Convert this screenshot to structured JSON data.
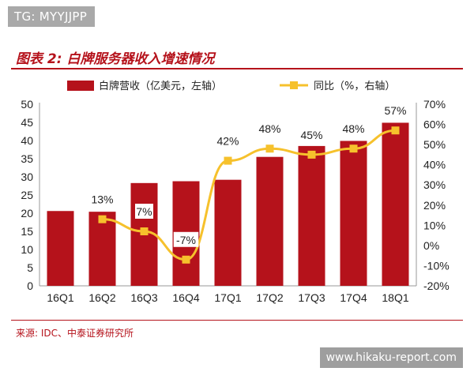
{
  "watermark_top": "TG: MYYJJPP",
  "figure_title": "图表 2:  白牌服务器收入增速情况",
  "source": "来源: IDC、中泰证券研究所",
  "watermark_bottom": "www.hikaku-report.com",
  "colors": {
    "bar": "#b5121b",
    "line": "#f6c12c",
    "accent": "#b5121b"
  },
  "chart_data": {
    "type": "bar",
    "categories": [
      "16Q1",
      "16Q2",
      "16Q3",
      "16Q4",
      "17Q1",
      "17Q2",
      "17Q3",
      "17Q4",
      "18Q1"
    ],
    "series": [
      {
        "name": "白牌营收（亿美元，左轴）",
        "type": "bar",
        "axis": "left",
        "values": [
          20.6,
          20.4,
          28.3,
          28.8,
          29.2,
          35.5,
          38.5,
          39.9,
          44.9
        ]
      },
      {
        "name": "同比（%，右轴）",
        "type": "line",
        "axis": "right",
        "values": [
          null,
          13,
          7,
          -7,
          42,
          48,
          45,
          48,
          57
        ],
        "labels": [
          "",
          "13%",
          "7%",
          "-7%",
          "42%",
          "48%",
          "45%",
          "48%",
          "57%"
        ]
      }
    ],
    "left_axis": {
      "min": 0,
      "max": 50,
      "ticks": [
        "0",
        "5",
        "10",
        "15",
        "20",
        "25",
        "30",
        "35",
        "40",
        "45",
        "50"
      ]
    },
    "right_axis": {
      "min": -20,
      "max": 70,
      "ticks": [
        "-20%",
        "-10%",
        "0%",
        "10%",
        "20%",
        "30%",
        "40%",
        "50%",
        "60%",
        "70%"
      ]
    },
    "legend_position": "top",
    "grid": false
  }
}
